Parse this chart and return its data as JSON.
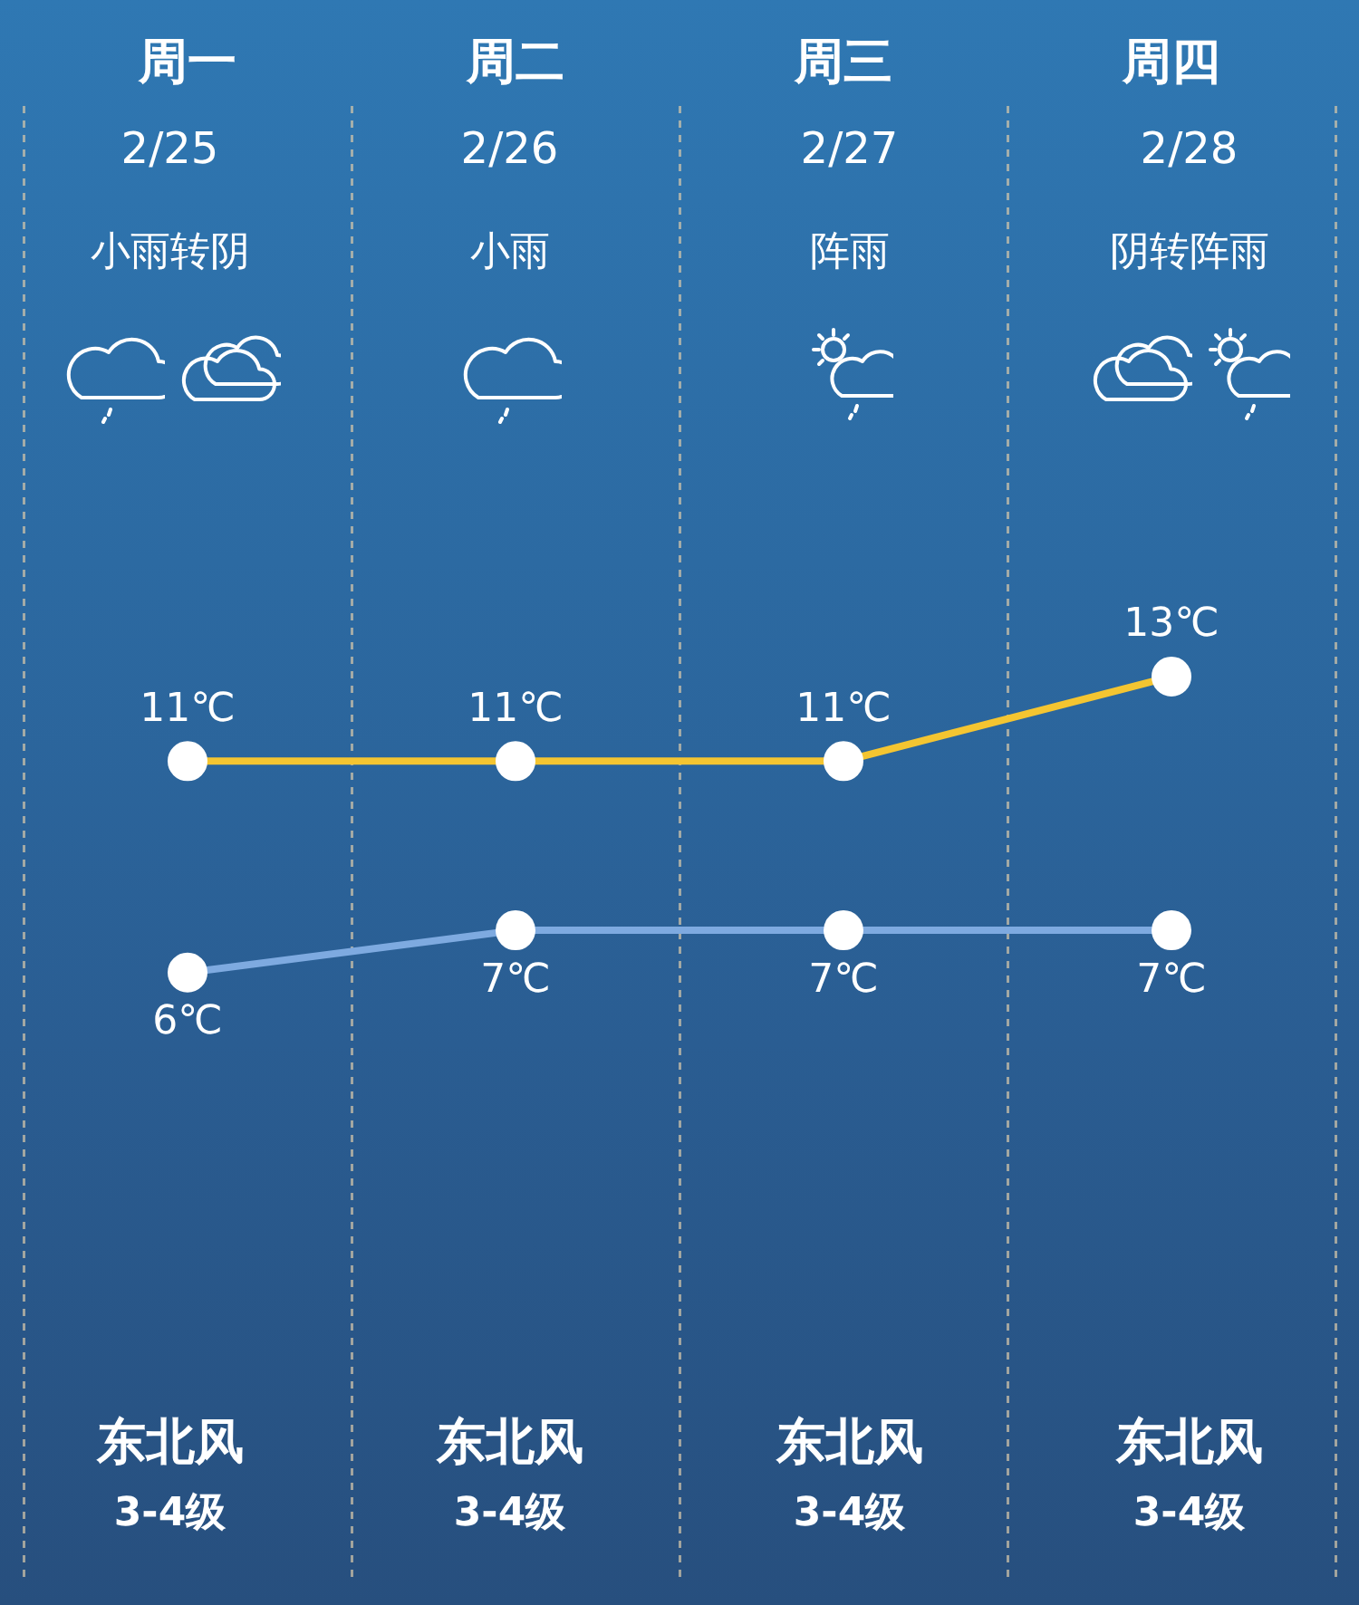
{
  "chart_data": {
    "type": "line",
    "categories": [
      "周一",
      "周二",
      "周三",
      "周四"
    ],
    "series": [
      {
        "color": "#f4c531",
        "values": [
          11,
          11,
          11,
          13
        ],
        "value_labels": [
          "11℃",
          "11℃",
          "11℃",
          "13℃"
        ]
      },
      {
        "color": "#7eaae0",
        "values": [
          6,
          7,
          7,
          7
        ],
        "value_labels": [
          "6℃",
          "7℃",
          "7℃",
          "7℃"
        ]
      }
    ],
    "annotations": [
      "2/25",
      "2/26",
      "2/27",
      "2/28",
      "小雨转阴",
      "小雨",
      "阵雨",
      "阴转阵雨",
      "东北风",
      "东北风",
      "东北风",
      "东北风",
      "3-4级",
      "3-4级",
      "3-4级",
      "3-4级"
    ],
    "grid": "x",
    "marker": "circle",
    "legend": false
  }
}
